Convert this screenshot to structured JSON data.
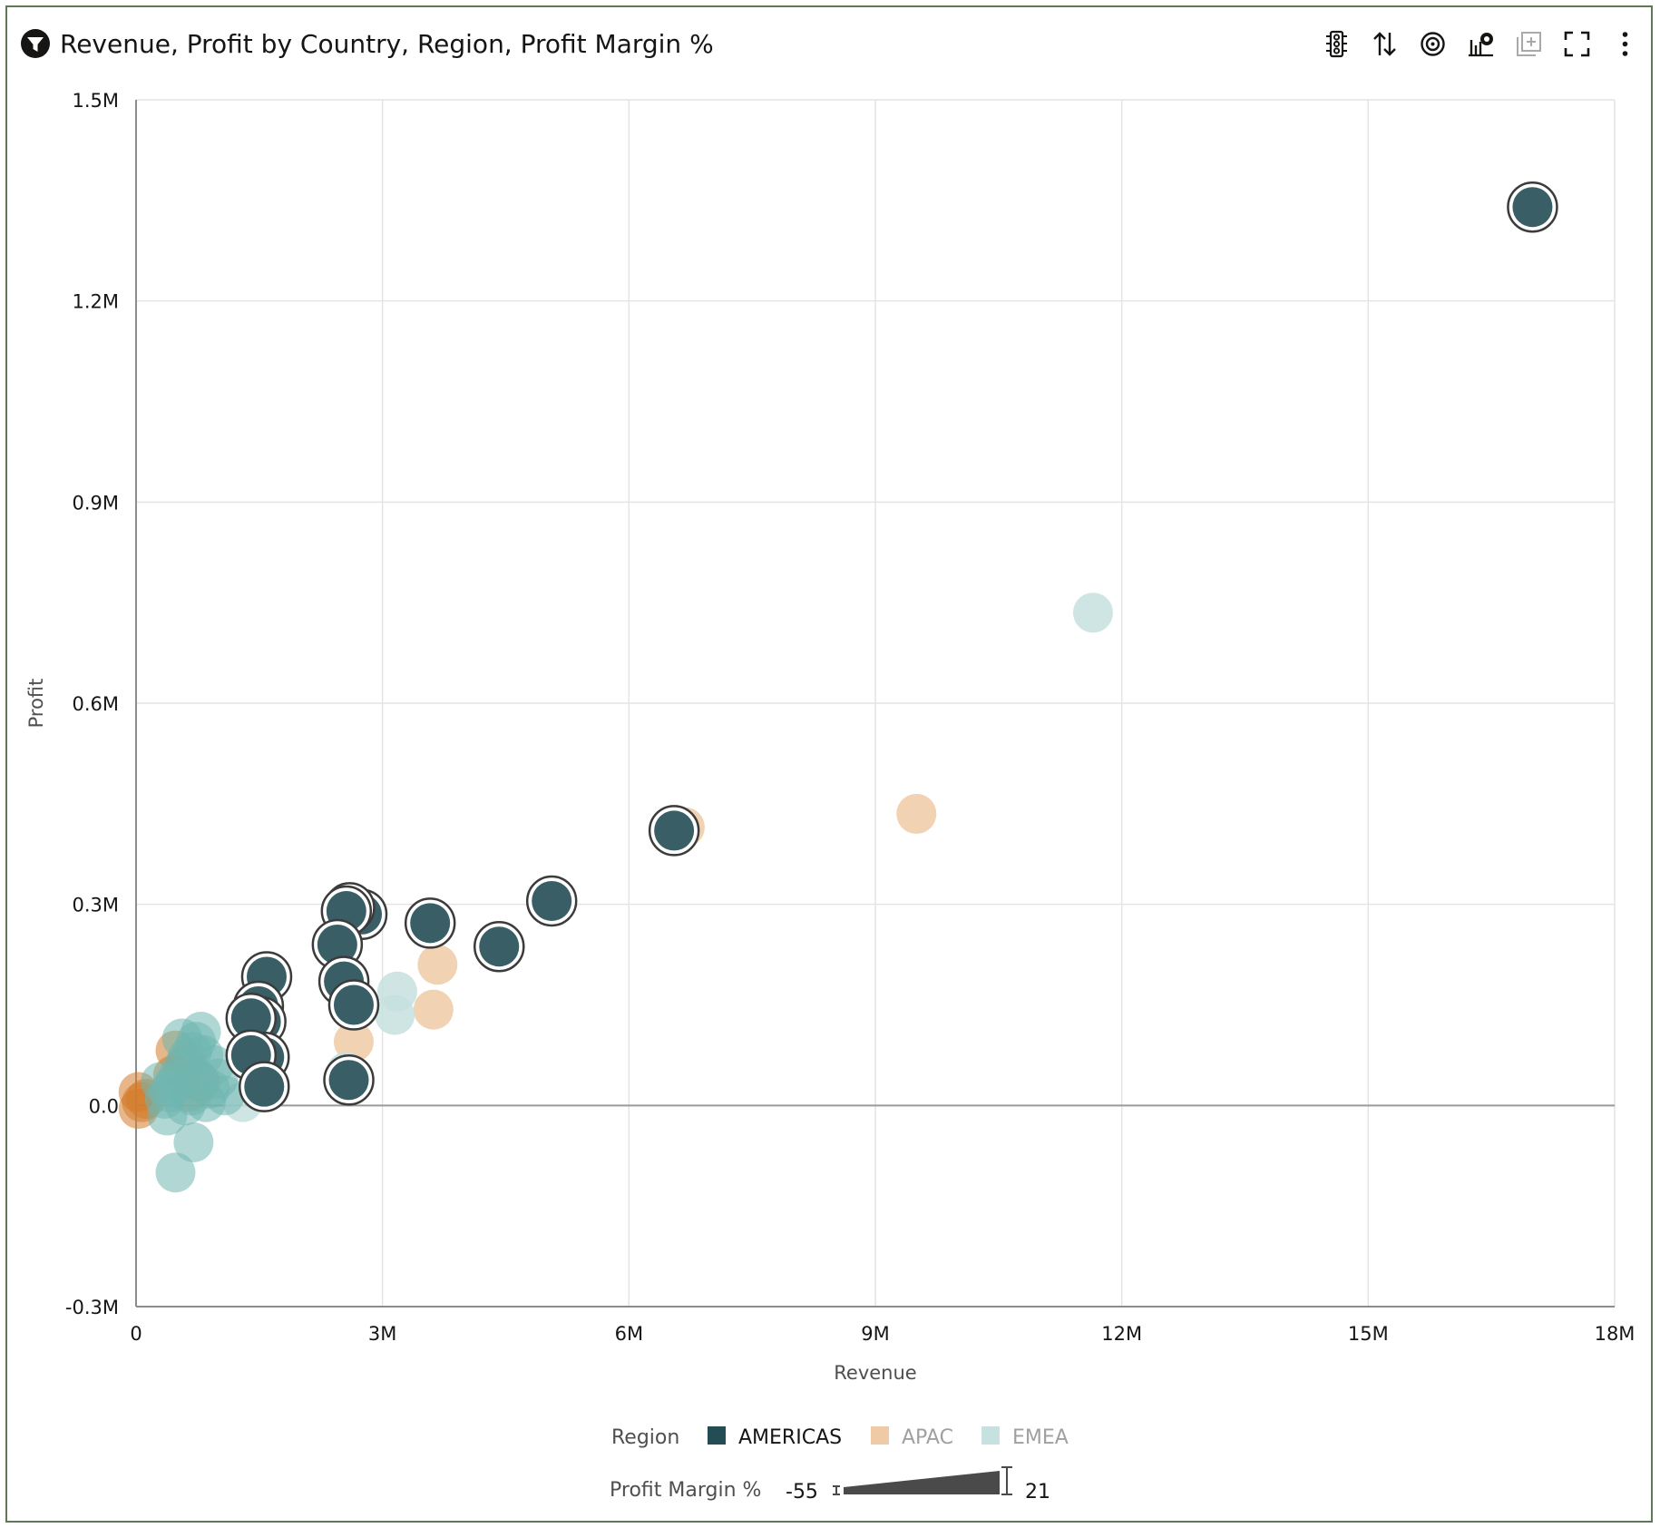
{
  "header": {
    "title": "Revenue, Profit by Country, Region, Profit Margin %",
    "filter_icon": "filter-icon"
  },
  "toolbar": {
    "buttons": [
      {
        "icon": "traffic-light-icon"
      },
      {
        "icon": "sort-icon"
      },
      {
        "icon": "target-icon"
      },
      {
        "icon": "chart-properties-icon"
      },
      {
        "icon": "add-canvas-icon"
      },
      {
        "icon": "fullscreen-icon"
      },
      {
        "icon": "more-options-icon"
      }
    ]
  },
  "colors": {
    "americas": "#234c54",
    "apac": "#efcaa6",
    "emea": "#c6e1df",
    "apac_saturated": "#d47c2c",
    "emea_saturated": "#6fb6b1",
    "grid": "#e4e4e4",
    "axis": "#8c8c8c"
  },
  "chart_data": {
    "type": "scatter",
    "xlabel": "Revenue",
    "ylabel": "Profit",
    "xlim": [
      0,
      18000000
    ],
    "ylim": [
      -300000,
      1500000
    ],
    "x_ticks": [
      {
        "value": 0,
        "label": "0"
      },
      {
        "value": 3000000,
        "label": "3M"
      },
      {
        "value": 6000000,
        "label": "6M"
      },
      {
        "value": 9000000,
        "label": "9M"
      },
      {
        "value": 12000000,
        "label": "12M"
      },
      {
        "value": 15000000,
        "label": "15M"
      },
      {
        "value": 18000000,
        "label": "18M"
      }
    ],
    "y_ticks": [
      {
        "value": -300000,
        "label": "-0.3M"
      },
      {
        "value": 0,
        "label": "0.0"
      },
      {
        "value": 300000,
        "label": "0.3M"
      },
      {
        "value": 600000,
        "label": "0.6M"
      },
      {
        "value": 900000,
        "label": "0.9M"
      },
      {
        "value": 1200000,
        "label": "1.2M"
      },
      {
        "value": 1500000,
        "label": "1.5M"
      }
    ],
    "grid": true,
    "legend": {
      "color_title": "Region",
      "size_title": "Profit Margin %",
      "size_min_label": "-55",
      "size_max_label": "21",
      "placement": "bottom-center",
      "selected": "AMERICAS"
    },
    "series": [
      {
        "name": "AMERICAS",
        "color_key": "americas",
        "points": [
          [
            17000000,
            1340000
          ],
          [
            6550000,
            410000
          ],
          [
            5060000,
            305000
          ],
          [
            4420000,
            237000
          ],
          [
            3580000,
            272000
          ],
          [
            2750000,
            285000
          ],
          [
            2600000,
            295000
          ],
          [
            2560000,
            290000
          ],
          [
            2450000,
            240000
          ],
          [
            2530000,
            185000
          ],
          [
            2650000,
            150000
          ],
          [
            2590000,
            38000
          ],
          [
            1590000,
            192000
          ],
          [
            1490000,
            148000
          ],
          [
            1520000,
            125000
          ],
          [
            1400000,
            130000
          ],
          [
            1560000,
            72000
          ],
          [
            1400000,
            75000
          ],
          [
            1560000,
            28000
          ]
        ]
      },
      {
        "name": "APAC",
        "color_key": "apac",
        "points": [
          [
            6680000,
            415000
          ],
          [
            9500000,
            435000
          ],
          [
            3670000,
            210000
          ],
          [
            3620000,
            143000
          ],
          [
            2650000,
            95000
          ],
          [
            480000,
            82000
          ],
          [
            780000,
            35000
          ],
          [
            650000,
            20000
          ],
          [
            450000,
            45000
          ],
          [
            600000,
            60000
          ],
          [
            30000,
            20000
          ],
          [
            70000,
            5000
          ],
          [
            30000,
            -5000
          ],
          [
            120000,
            10000
          ]
        ]
      },
      {
        "name": "EMEA",
        "color_key": "emea",
        "points": [
          [
            11650000,
            735000
          ],
          [
            3180000,
            170000
          ],
          [
            3150000,
            135000
          ],
          [
            2580000,
            185000
          ],
          [
            2560000,
            50000
          ],
          [
            1350000,
            80000
          ],
          [
            1300000,
            5000
          ],
          [
            1080000,
            15000
          ],
          [
            790000,
            110000
          ],
          [
            730000,
            95000
          ],
          [
            680000,
            80000
          ],
          [
            620000,
            70000
          ],
          [
            560000,
            55000
          ],
          [
            500000,
            40000
          ],
          [
            450000,
            30000
          ],
          [
            400000,
            20000
          ],
          [
            350000,
            10000
          ],
          [
            850000,
            5000
          ],
          [
            900000,
            25000
          ],
          [
            950000,
            60000
          ],
          [
            700000,
            -55000
          ],
          [
            480000,
            -100000
          ],
          [
            380000,
            -15000
          ],
          [
            600000,
            0
          ],
          [
            750000,
            40000
          ],
          [
            820000,
            75000
          ],
          [
            300000,
            35000
          ],
          [
            1000000,
            40000
          ],
          [
            680000,
            15000
          ],
          [
            560000,
            100000
          ]
        ]
      }
    ]
  }
}
